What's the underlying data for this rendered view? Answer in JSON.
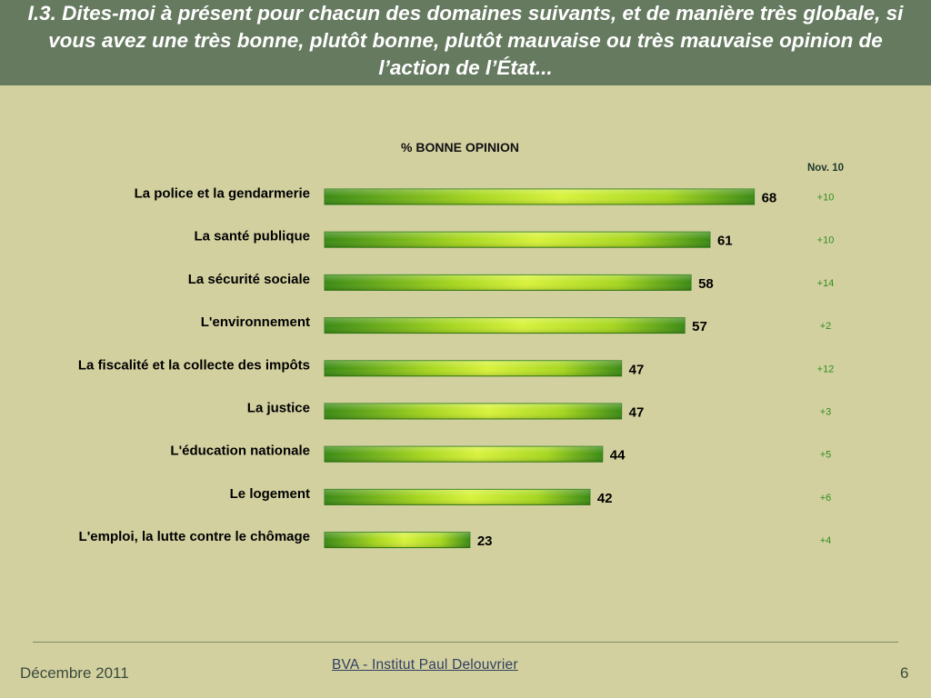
{
  "header": {
    "title": "I.3. Dites-moi à présent pour chacun des domaines suivants, et de manière très globale, si vous avez une très bonne, plutôt bonne, plutôt mauvaise ou très mauvaise opinion de l’action de l’État..."
  },
  "chart_data": {
    "type": "bar",
    "orientation": "horizontal",
    "subtitle": "% BONNE OPINION",
    "change_header": "Nov. 10",
    "categories": [
      "La police et la gendarmerie",
      "La santé publique",
      "La sécurité sociale",
      "L'environnement",
      "La fiscalité et la collecte des impôts",
      "La justice",
      "L'éducation nationale",
      "Le logement",
      "L'emploi, la lutte contre le chômage"
    ],
    "values": [
      68,
      61,
      58,
      57,
      47,
      47,
      44,
      42,
      23
    ],
    "value_labels": [
      "68",
      "61",
      "58",
      "57",
      "47",
      "47",
      "44",
      "42",
      "23"
    ],
    "changes": [
      "+10",
      "+10",
      "+14",
      "+2",
      "+12",
      "+3",
      "+5",
      "+6",
      "+4"
    ],
    "bar_color": "#9ccc1c",
    "bar_edge_color": "#2f7d12",
    "change_color": "#2f8f1f"
  },
  "footer": {
    "date": "Décembre 2011",
    "brand": "BVA - Institut Paul Delouvrier",
    "page_number": "6"
  }
}
